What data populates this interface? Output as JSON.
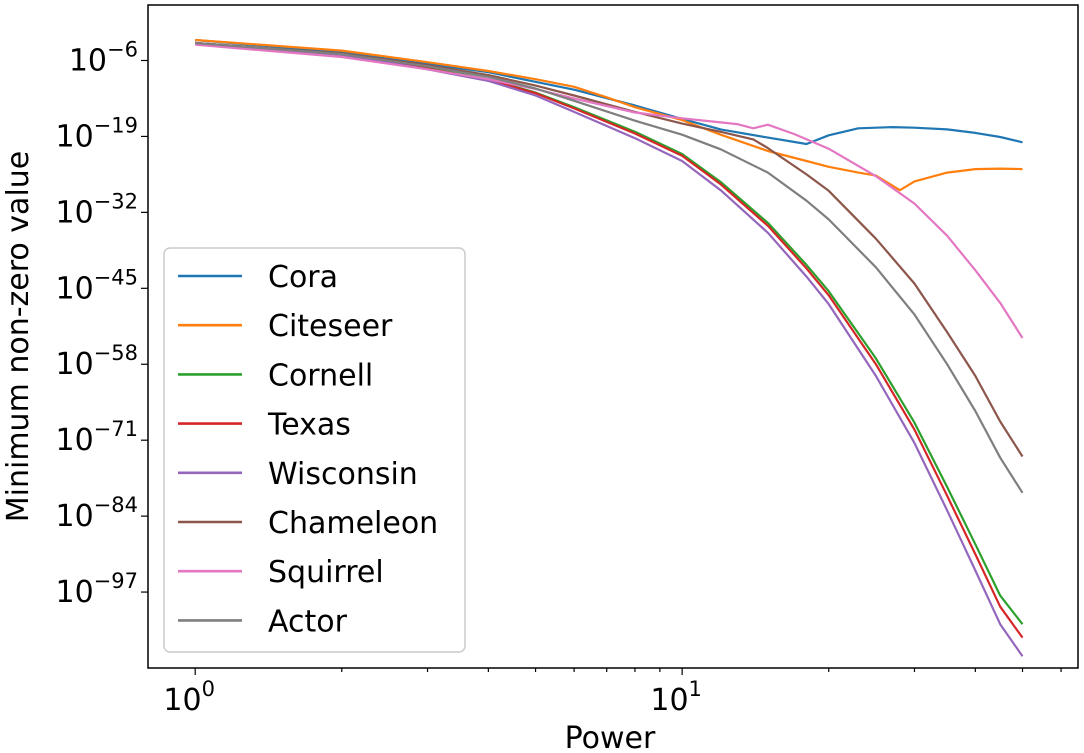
{
  "chart_data": {
    "type": "line",
    "xlabel": "Power",
    "ylabel": "Minimum non-zero value",
    "xscale": "log",
    "yscale": "log",
    "xlim": [
      0.8,
      65
    ],
    "ylim_exponent": [
      -110,
      3.5
    ],
    "x_ticks": [
      {
        "value": 1,
        "label_base": "10",
        "label_exp": "0"
      },
      {
        "value": 10,
        "label_base": "10",
        "label_exp": "1"
      }
    ],
    "y_ticks": [
      {
        "exp": -6,
        "label_base": "10",
        "label_exp": "−6"
      },
      {
        "exp": -19,
        "label_base": "10",
        "label_exp": "−19"
      },
      {
        "exp": -32,
        "label_base": "10",
        "label_exp": "−32"
      },
      {
        "exp": -45,
        "label_base": "10",
        "label_exp": "−45"
      },
      {
        "exp": -58,
        "label_base": "10",
        "label_exp": "−58"
      },
      {
        "exp": -71,
        "label_base": "10",
        "label_exp": "−71"
      },
      {
        "exp": -84,
        "label_base": "10",
        "label_exp": "−84"
      },
      {
        "exp": -97,
        "label_base": "10",
        "label_exp": "−97"
      }
    ],
    "y_values_note": "series y values are base-10 exponents of the minimum non-zero value",
    "grid": false,
    "legend_position": "lower-left",
    "series": [
      {
        "name": "Cora",
        "color": "#1f77b4",
        "points": [
          [
            1,
            -2.5
          ],
          [
            2,
            -4.6
          ],
          [
            4,
            -8
          ],
          [
            6,
            -11
          ],
          [
            8,
            -13.7
          ],
          [
            10,
            -16
          ],
          [
            12,
            -17.8
          ],
          [
            15,
            -19.2
          ],
          [
            18,
            -20.3
          ],
          [
            20,
            -18.8
          ],
          [
            23,
            -17.6
          ],
          [
            27,
            -17.4
          ],
          [
            30,
            -17.5
          ],
          [
            35,
            -17.8
          ],
          [
            40,
            -18.4
          ],
          [
            45,
            -19.1
          ],
          [
            50,
            -20
          ]
        ]
      },
      {
        "name": "Citeseer",
        "color": "#ff7f0e",
        "points": [
          [
            1,
            -2.5
          ],
          [
            2,
            -4.3
          ],
          [
            3,
            -6.3
          ],
          [
            4,
            -7.8
          ],
          [
            5,
            -9.2
          ],
          [
            6,
            -10.5
          ],
          [
            7,
            -12.3
          ],
          [
            8,
            -14
          ],
          [
            10,
            -16.2
          ],
          [
            12,
            -18.7
          ],
          [
            15,
            -21.5
          ],
          [
            18,
            -23.2
          ],
          [
            20,
            -24.2
          ],
          [
            23,
            -25.2
          ],
          [
            25,
            -25.7
          ],
          [
            28,
            -28.2
          ],
          [
            30,
            -26.7
          ],
          [
            35,
            -25.2
          ],
          [
            40,
            -24.6
          ],
          [
            45,
            -24.5
          ],
          [
            50,
            -24.6
          ]
        ]
      },
      {
        "name": "Cornell",
        "color": "#2ca02c",
        "points": [
          [
            1,
            -3
          ],
          [
            2,
            -5
          ],
          [
            3,
            -7.3
          ],
          [
            4,
            -9.2
          ],
          [
            5,
            -11.5
          ],
          [
            6,
            -14
          ],
          [
            8,
            -18.2
          ],
          [
            10,
            -22
          ],
          [
            12,
            -26.8
          ],
          [
            15,
            -33.8
          ],
          [
            18,
            -41
          ],
          [
            20,
            -45.5
          ],
          [
            25,
            -57
          ],
          [
            30,
            -68
          ],
          [
            35,
            -79
          ],
          [
            40,
            -88.8
          ],
          [
            45,
            -97.6
          ],
          [
            50,
            -102.5
          ]
        ]
      },
      {
        "name": "Texas",
        "color": "#d62728",
        "points": [
          [
            1,
            -3
          ],
          [
            2,
            -5
          ],
          [
            3,
            -7.4
          ],
          [
            4,
            -9.3
          ],
          [
            5,
            -11.6
          ],
          [
            6,
            -14.2
          ],
          [
            8,
            -18.5
          ],
          [
            10,
            -22.3
          ],
          [
            12,
            -27.2
          ],
          [
            15,
            -34.3
          ],
          [
            18,
            -41.6
          ],
          [
            20,
            -46.2
          ],
          [
            25,
            -58
          ],
          [
            30,
            -69.2
          ],
          [
            35,
            -80.5
          ],
          [
            40,
            -90.5
          ],
          [
            45,
            -99.5
          ],
          [
            50,
            -104.8
          ]
        ]
      },
      {
        "name": "Wisconsin",
        "color": "#9467bd",
        "points": [
          [
            1,
            -3
          ],
          [
            2,
            -5
          ],
          [
            3,
            -7.5
          ],
          [
            4,
            -9.5
          ],
          [
            5,
            -12
          ],
          [
            6,
            -14.8
          ],
          [
            8,
            -19.3
          ],
          [
            10,
            -23.2
          ],
          [
            12,
            -28.2
          ],
          [
            15,
            -35.5
          ],
          [
            18,
            -43
          ],
          [
            20,
            -47.7
          ],
          [
            25,
            -60
          ],
          [
            30,
            -71.5
          ],
          [
            35,
            -83
          ],
          [
            40,
            -93.3
          ],
          [
            45,
            -102.5
          ],
          [
            50,
            -108
          ]
        ]
      },
      {
        "name": "Chameleon",
        "color": "#8c564b",
        "points": [
          [
            1,
            -3
          ],
          [
            2,
            -4.8
          ],
          [
            3,
            -6.8
          ],
          [
            4,
            -8.5
          ],
          [
            5,
            -10.3
          ],
          [
            6,
            -12
          ],
          [
            8,
            -14.8
          ],
          [
            10,
            -16.8
          ],
          [
            12,
            -18.2
          ],
          [
            14,
            -19.5
          ],
          [
            15,
            -21
          ],
          [
            18,
            -25.5
          ],
          [
            20,
            -28.3
          ],
          [
            25,
            -36.5
          ],
          [
            30,
            -44.2
          ],
          [
            35,
            -52.5
          ],
          [
            40,
            -60
          ],
          [
            45,
            -67.8
          ],
          [
            50,
            -73.8
          ]
        ]
      },
      {
        "name": "Squirrel",
        "color": "#e377c2",
        "points": [
          [
            1,
            -3.3
          ],
          [
            2,
            -5.4
          ],
          [
            3,
            -7.5
          ],
          [
            4,
            -9.2
          ],
          [
            5,
            -10.9
          ],
          [
            6,
            -12.5
          ],
          [
            8,
            -14.9
          ],
          [
            10,
            -15.9
          ],
          [
            12,
            -16.6
          ],
          [
            13,
            -16.9
          ],
          [
            14,
            -17.6
          ],
          [
            15,
            -17
          ],
          [
            17,
            -18.6
          ],
          [
            20,
            -21.1
          ],
          [
            25,
            -25.8
          ],
          [
            30,
            -30.5
          ],
          [
            35,
            -36
          ],
          [
            40,
            -41.9
          ],
          [
            45,
            -47.5
          ],
          [
            50,
            -53.5
          ]
        ]
      },
      {
        "name": "Actor",
        "color": "#7f7f7f",
        "points": [
          [
            1,
            -3
          ],
          [
            2,
            -4.9
          ],
          [
            3,
            -7
          ],
          [
            4,
            -8.8
          ],
          [
            5,
            -10.8
          ],
          [
            6,
            -12.9
          ],
          [
            8,
            -16.3
          ],
          [
            10,
            -18.7
          ],
          [
            12,
            -21.2
          ],
          [
            15,
            -25.2
          ],
          [
            18,
            -30
          ],
          [
            20,
            -33.2
          ],
          [
            25,
            -41.4
          ],
          [
            30,
            -49.5
          ],
          [
            35,
            -58
          ],
          [
            40,
            -66
          ],
          [
            45,
            -74
          ],
          [
            50,
            -80
          ]
        ]
      }
    ]
  }
}
